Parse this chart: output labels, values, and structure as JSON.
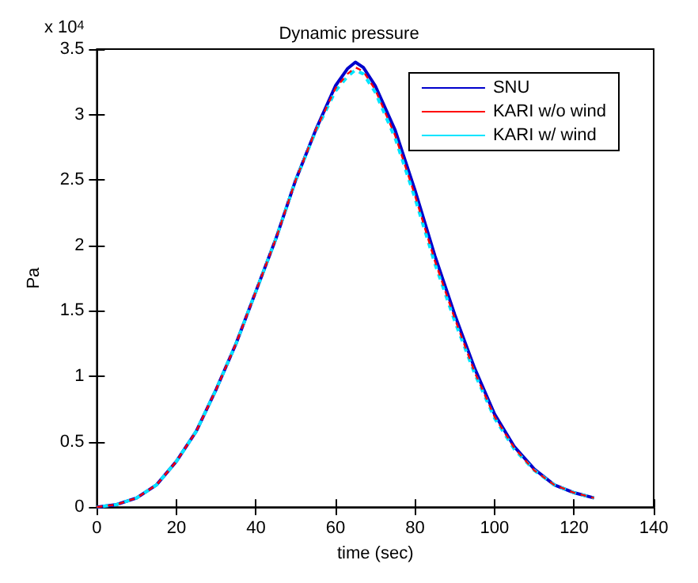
{
  "chart_data": {
    "type": "line",
    "title": "Dynamic pressure",
    "xlabel": "time (sec)",
    "ylabel": "Pa",
    "annotations": [
      "x 10$^{4}$"
    ],
    "x": [
      0,
      5,
      10,
      15,
      20,
      25,
      30,
      35,
      40,
      45,
      50,
      55,
      60,
      63,
      65,
      67,
      70,
      75,
      80,
      85,
      90,
      95,
      100,
      105,
      110,
      115,
      120,
      125
    ],
    "series": [
      {
        "name": "SNU",
        "color": "#0000cc",
        "line_style": "solid",
        "values": [
          0,
          0.02,
          0.07,
          0.17,
          0.35,
          0.58,
          0.9,
          1.25,
          1.65,
          2.05,
          2.5,
          2.88,
          3.22,
          3.35,
          3.4,
          3.36,
          3.22,
          2.88,
          2.42,
          1.92,
          1.47,
          1.06,
          0.71,
          0.46,
          0.29,
          0.17,
          0.11,
          0.07
        ]
      },
      {
        "name": "KARI w/o wind",
        "color": "#ff0000",
        "line_style": "dashed",
        "values": [
          0,
          0.02,
          0.07,
          0.17,
          0.35,
          0.58,
          0.9,
          1.25,
          1.65,
          2.05,
          2.5,
          2.88,
          3.2,
          3.31,
          3.36,
          3.33,
          3.19,
          2.84,
          2.38,
          1.88,
          1.44,
          1.03,
          0.69,
          0.45,
          0.28,
          0.17,
          0.11,
          0.07
        ]
      },
      {
        "name": "KARI w/ wind",
        "color": "#00e5ff",
        "line_style": "dashed",
        "values": [
          0,
          0.02,
          0.07,
          0.17,
          0.35,
          0.58,
          0.9,
          1.25,
          1.65,
          2.05,
          2.5,
          2.87,
          3.18,
          3.29,
          3.34,
          3.31,
          3.17,
          2.82,
          2.36,
          1.86,
          1.42,
          1.02,
          0.68,
          0.44,
          0.28,
          0.17,
          0.11,
          0.07
        ]
      }
    ],
    "xlim": [
      0,
      140
    ],
    "xticks": [
      0,
      20,
      40,
      60,
      80,
      100,
      120,
      140
    ],
    "ylim": [
      0,
      3.5
    ],
    "yticks": [
      0,
      0.5,
      1,
      1.5,
      2,
      2.5,
      3,
      3.5
    ],
    "grid": false,
    "legend": "top right"
  }
}
